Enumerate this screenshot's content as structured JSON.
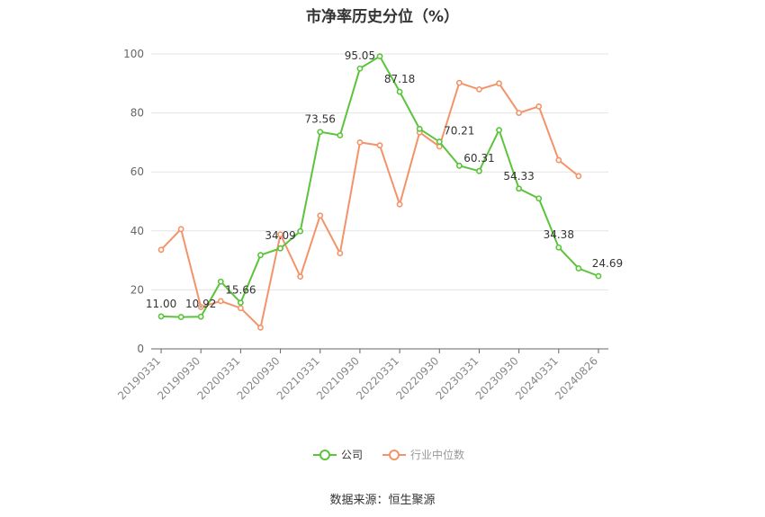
{
  "chart_data": {
    "type": "line",
    "title": "市净率历史分位（%）",
    "xlabel": "",
    "ylabel": "",
    "ylim": [
      0,
      100
    ],
    "yticks": [
      0,
      20,
      40,
      60,
      80,
      100
    ],
    "x": [
      "20190331",
      "20190630",
      "20190930",
      "20191231",
      "20200331",
      "20200630",
      "20200930",
      "20201231",
      "20210331",
      "20210630",
      "20210930",
      "20211231",
      "20220331",
      "20220630",
      "20220930",
      "20221231",
      "20230331",
      "20230630",
      "20230930",
      "20231231",
      "20240331",
      "20240630",
      "20240826"
    ],
    "xtick_labels": [
      "20190331",
      "20190930",
      "20200331",
      "20200930",
      "20210331",
      "20210930",
      "20220331",
      "20220930",
      "20230331",
      "20230930",
      "20240331",
      "20240826"
    ],
    "grid": true,
    "legend_position": "bottom",
    "series": [
      {
        "name": "公司",
        "color": "#5ac43a",
        "values": [
          11.0,
          10.8,
          10.92,
          22.8,
          15.66,
          31.8,
          34.09,
          39.9,
          73.56,
          72.4,
          95.05,
          99.2,
          87.18,
          74.6,
          70.21,
          62.1,
          60.31,
          74.2,
          54.33,
          51.0,
          34.38,
          27.3,
          24.69
        ],
        "labels": {
          "0": "11.00",
          "2": "10.92",
          "4": "15.66",
          "6": "34.09",
          "8": "73.56",
          "10": "95.05",
          "12": "87.18",
          "14": "70.21",
          "16": "60.31",
          "18": "54.33",
          "20": "34.38",
          "22": "24.69"
        }
      },
      {
        "name": "行业中位数",
        "color": "#f4936a",
        "values": [
          33.6,
          40.6,
          14.2,
          16.2,
          13.8,
          7.2,
          38.8,
          24.5,
          45.2,
          32.4,
          70.0,
          69.0,
          49.0,
          73.4,
          68.6,
          90.2,
          88.0,
          90.0,
          80.0,
          82.2,
          64.0,
          58.6,
          null
        ]
      }
    ]
  },
  "source_note": "数据来源：恒生聚源"
}
